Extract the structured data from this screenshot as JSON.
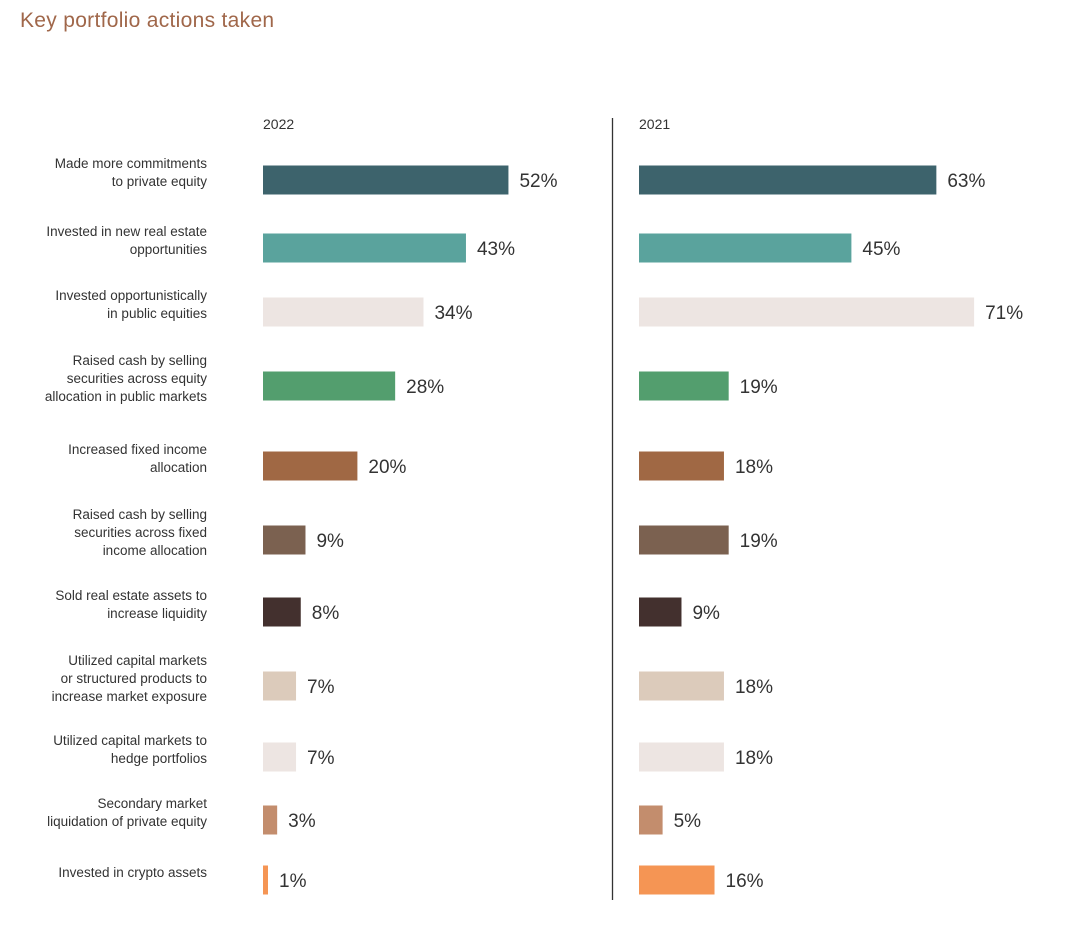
{
  "chart_data": {
    "type": "bar",
    "orientation": "horizontal",
    "title": "Key portfolio actions taken",
    "categories": [
      [
        "Made more commitments",
        "to private equity"
      ],
      [
        "Invested  in new real estate",
        "opportunities"
      ],
      [
        "Invested opportunistically",
        "in public equities"
      ],
      [
        "Raised cash by selling",
        "securities across equity",
        "allocation in public markets"
      ],
      [
        "Increased fixed income",
        "allocation"
      ],
      [
        "Raised cash by selling",
        "securities across fixed",
        "income allocation"
      ],
      [
        "Sold real estate assets to",
        "increase liquidity"
      ],
      [
        "Utilized capital markets",
        "or structured products to",
        "increase market exposure"
      ],
      [
        "Utilized capital markets to",
        "hedge portfolios"
      ],
      [
        "Secondary market",
        "liquidation of private equity"
      ],
      [
        "Invested in crypto assets"
      ]
    ],
    "bar_colors": [
      "#3d636c",
      "#5aa39d",
      "#ede5e2",
      "#539e6e",
      "#a06844",
      "#7b6150",
      "#43302e",
      "#dccbbb",
      "#ede5e2",
      "#c38d6d",
      "#f59554"
    ],
    "series": [
      {
        "name": "2022",
        "values": [
          52,
          43,
          34,
          28,
          20,
          9,
          8,
          7,
          7,
          3,
          1
        ]
      },
      {
        "name": "2021",
        "values": [
          63,
          45,
          71,
          19,
          18,
          19,
          9,
          18,
          18,
          5,
          16
        ]
      }
    ],
    "value_suffix": "%",
    "xlim": [
      0,
      100
    ],
    "grid": false,
    "divider_between_panels": true,
    "divider_color": "#333333"
  }
}
